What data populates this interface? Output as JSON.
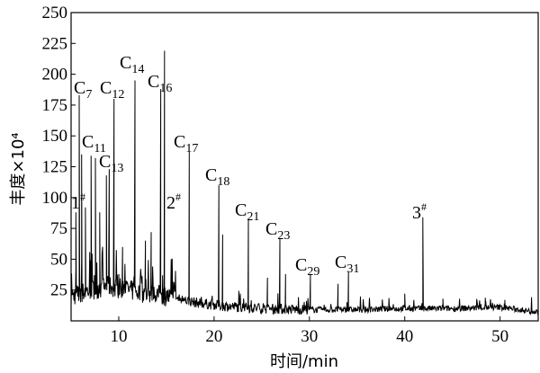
{
  "chart_data": {
    "type": "line",
    "title": "",
    "xlabel": "时间/min",
    "ylabel": "丰度×10⁴",
    "xlim": [
      5,
      54
    ],
    "ylim": [
      0,
      250
    ],
    "x_ticks": [
      10,
      20,
      30,
      40,
      50
    ],
    "y_ticks": [
      25,
      50,
      75,
      100,
      125,
      150,
      175,
      200,
      225,
      250
    ],
    "grid": false,
    "legend": "none",
    "line_color": "#000000",
    "baseline": [
      {
        "x": 5.0,
        "y": 20
      },
      {
        "x": 7.0,
        "y": 25
      },
      {
        "x": 9.0,
        "y": 28
      },
      {
        "x": 11.0,
        "y": 25
      },
      {
        "x": 13.0,
        "y": 22
      },
      {
        "x": 15.0,
        "y": 20
      },
      {
        "x": 18.0,
        "y": 15
      },
      {
        "x": 21.0,
        "y": 12
      },
      {
        "x": 25.0,
        "y": 10
      },
      {
        "x": 30.0,
        "y": 9
      },
      {
        "x": 35.0,
        "y": 9
      },
      {
        "x": 40.0,
        "y": 10
      },
      {
        "x": 45.0,
        "y": 10
      },
      {
        "x": 50.0,
        "y": 11
      },
      {
        "x": 54.0,
        "y": 7
      }
    ],
    "peaks": [
      {
        "x": 5.5,
        "y": 88
      },
      {
        "x": 5.85,
        "y": 183
      },
      {
        "x": 6.1,
        "y": 135
      },
      {
        "x": 6.5,
        "y": 92
      },
      {
        "x": 7.1,
        "y": 134
      },
      {
        "x": 7.55,
        "y": 132
      },
      {
        "x": 8.0,
        "y": 88
      },
      {
        "x": 8.7,
        "y": 118
      },
      {
        "x": 9.0,
        "y": 123
      },
      {
        "x": 9.5,
        "y": 180
      },
      {
        "x": 10.4,
        "y": 60
      },
      {
        "x": 11.7,
        "y": 195
      },
      {
        "x": 12.8,
        "y": 65
      },
      {
        "x": 13.4,
        "y": 72
      },
      {
        "x": 14.4,
        "y": 188
      },
      {
        "x": 14.8,
        "y": 219
      },
      {
        "x": 15.5,
        "y": 50
      },
      {
        "x": 17.4,
        "y": 137
      },
      {
        "x": 20.5,
        "y": 110
      },
      {
        "x": 20.9,
        "y": 70
      },
      {
        "x": 23.6,
        "y": 83
      },
      {
        "x": 25.6,
        "y": 35
      },
      {
        "x": 26.9,
        "y": 67
      },
      {
        "x": 27.5,
        "y": 38
      },
      {
        "x": 30.1,
        "y": 38
      },
      {
        "x": 33.0,
        "y": 30
      },
      {
        "x": 34.1,
        "y": 40
      },
      {
        "x": 40.0,
        "y": 22
      },
      {
        "x": 41.9,
        "y": 84
      },
      {
        "x": 44.0,
        "y": 18
      },
      {
        "x": 48.5,
        "y": 16
      },
      {
        "x": 50.5,
        "y": 17
      }
    ],
    "annotations": [
      {
        "base": "C",
        "sub": "7",
        "sup": "",
        "x": 5.85,
        "y": 183
      },
      {
        "base": "C",
        "sub": "11",
        "sup": "",
        "x": 7.1,
        "y": 134
      },
      {
        "base": "C",
        "sub": "12",
        "sup": "",
        "x": 9.5,
        "y": 180
      },
      {
        "base": "C",
        "sub": "13",
        "sup": "",
        "x": 9.0,
        "y": 123
      },
      {
        "base": "C",
        "sub": "14",
        "sup": "",
        "x": 11.7,
        "y": 195
      },
      {
        "base": "C",
        "sub": "16",
        "sup": "",
        "x": 14.8,
        "y": 219
      },
      {
        "base": "C",
        "sub": "17",
        "sup": "",
        "x": 17.4,
        "y": 137
      },
      {
        "base": "C",
        "sub": "18",
        "sup": "",
        "x": 20.5,
        "y": 110
      },
      {
        "base": "C",
        "sub": "21",
        "sup": "",
        "x": 23.6,
        "y": 83
      },
      {
        "base": "C",
        "sub": "23",
        "sup": "",
        "x": 26.9,
        "y": 67
      },
      {
        "base": "C",
        "sub": "29",
        "sup": "",
        "x": 30.1,
        "y": 38
      },
      {
        "base": "C",
        "sub": "31",
        "sup": "",
        "x": 34.1,
        "y": 40
      },
      {
        "base": "1",
        "sub": "",
        "sup": "#",
        "x": 5.5,
        "y": 88
      },
      {
        "base": "2",
        "sub": "",
        "sup": "#",
        "x": 14.4,
        "y": 188
      },
      {
        "base": "3",
        "sub": "",
        "sup": "#",
        "x": 41.9,
        "y": 84
      }
    ]
  }
}
